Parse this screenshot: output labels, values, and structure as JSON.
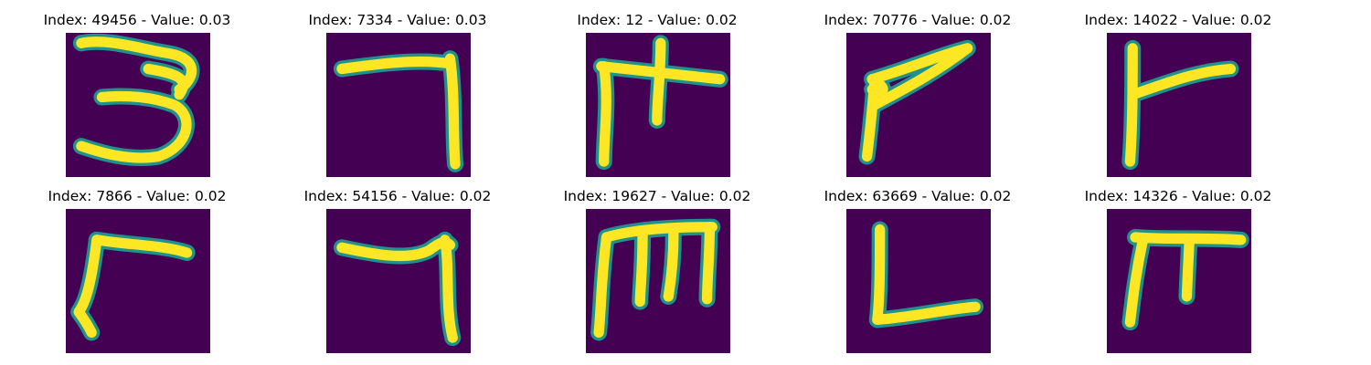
{
  "colors": {
    "background": "#440154",
    "stroke": "#fde725",
    "edge": "#21918c"
  },
  "panels": [
    {
      "title": "Index: 49456 - Value: 0.03",
      "glyph": "3"
    },
    {
      "title": "Index: 7334 - Value: 0.03",
      "glyph": "7"
    },
    {
      "title": "Index: 12 - Value: 0.02",
      "glyph": "pi-left"
    },
    {
      "title": "Index: 70776 - Value: 0.02",
      "glyph": "angle"
    },
    {
      "title": "Index: 14022 - Value: 0.02",
      "glyph": "fork"
    },
    {
      "title": "Index: 7866 - Value: 0.02",
      "glyph": "gamma"
    },
    {
      "title": "Index: 54156 - Value: 0.02",
      "glyph": "7-bent"
    },
    {
      "title": "Index: 19627 - Value: 0.02",
      "glyph": "m"
    },
    {
      "title": "Index: 63669 - Value: 0.02",
      "glyph": "L"
    },
    {
      "title": "Index: 14326 - Value: 0.02",
      "glyph": "pi"
    }
  ]
}
